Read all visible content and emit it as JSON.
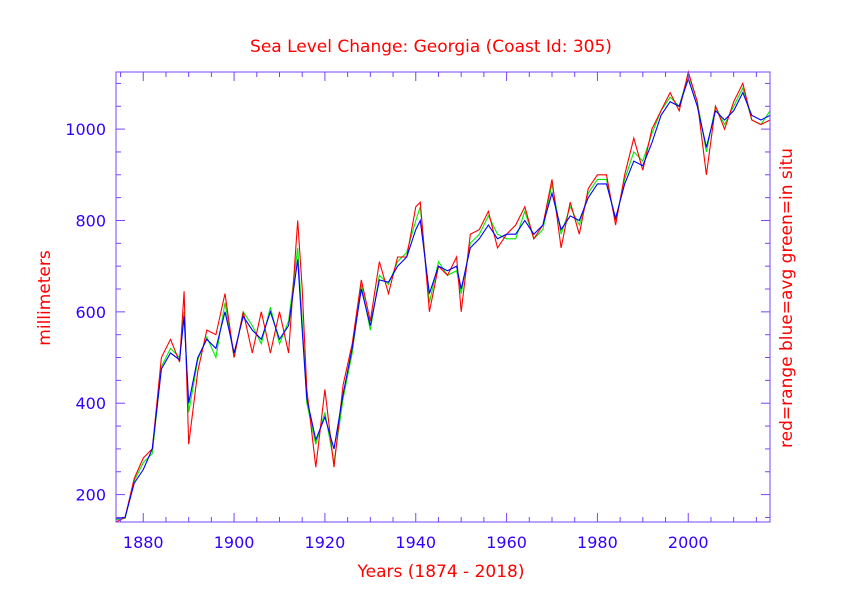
{
  "chart_data": {
    "type": "line",
    "title": "Sea Level Change: Georgia (Coast Id: 305)",
    "xlabel": "Years (1874 - 2018)",
    "ylabel": "millimeters",
    "right_label": "red=range  blue=avg  green=in situ",
    "xlim": [
      1874,
      2018
    ],
    "ylim": [
      140,
      1125
    ],
    "xticks": [
      1880,
      1900,
      1920,
      1940,
      1960,
      1980,
      2000
    ],
    "yticks": [
      200,
      400,
      600,
      800,
      1000
    ],
    "colors": {
      "title": "#ff0000",
      "axis_label": "#ff0000",
      "ticks": "#3300ff",
      "frame": "#7744ff",
      "range": "#ff0000",
      "avg": "#0000ff",
      "in_situ": "#00ee00"
    },
    "x": [
      1874,
      1876,
      1878,
      1880,
      1882,
      1884,
      1886,
      1888,
      1889,
      1890,
      1892,
      1894,
      1896,
      1898,
      1900,
      1902,
      1904,
      1906,
      1908,
      1910,
      1912,
      1914,
      1915,
      1916,
      1918,
      1920,
      1922,
      1924,
      1926,
      1928,
      1930,
      1932,
      1934,
      1936,
      1938,
      1940,
      1941,
      1943,
      1945,
      1947,
      1949,
      1950,
      1952,
      1954,
      1956,
      1958,
      1960,
      1962,
      1964,
      1966,
      1968,
      1970,
      1972,
      1974,
      1976,
      1978,
      1980,
      1982,
      1984,
      1986,
      1988,
      1990,
      1992,
      1994,
      1996,
      1998,
      2000,
      2002,
      2004,
      2006,
      2008,
      2010,
      2012,
      2014,
      2016,
      2018
    ],
    "series": [
      {
        "name": "avg",
        "values": [
          148,
          150,
          225,
          255,
          300,
          475,
          510,
          495,
          590,
          400,
          500,
          540,
          520,
          600,
          510,
          590,
          560,
          540,
          600,
          540,
          570,
          715,
          560,
          410,
          320,
          370,
          300,
          420,
          520,
          650,
          570,
          670,
          665,
          700,
          720,
          780,
          800,
          640,
          700,
          690,
          700,
          650,
          740,
          760,
          790,
          760,
          770,
          770,
          800,
          770,
          790,
          860,
          780,
          810,
          800,
          850,
          880,
          880,
          805,
          880,
          930,
          920,
          970,
          1030,
          1060,
          1050,
          1110,
          1050,
          960,
          1040,
          1020,
          1040,
          1080,
          1030,
          1020,
          1030
        ]
      },
      {
        "name": "in situ",
        "values": [
          145,
          148,
          230,
          270,
          290,
          480,
          520,
          500,
          600,
          380,
          495,
          545,
          500,
          620,
          500,
          600,
          570,
          530,
          610,
          530,
          580,
          740,
          580,
          400,
          310,
          380,
          270,
          410,
          510,
          660,
          560,
          680,
          660,
          710,
          730,
          800,
          830,
          620,
          710,
          680,
          690,
          640,
          750,
          770,
          810,
          770,
          760,
          760,
          820,
          760,
          780,
          880,
          770,
          830,
          790,
          860,
          890,
          890,
          800,
          890,
          950,
          930,
          990,
          1040,
          1070,
          1050,
          1120,
          1060,
          950,
          1050,
          1010,
          1050,
          1090,
          1020,
          1010,
          1040
        ]
      },
      {
        "name": "range",
        "values": [
          140,
          150,
          235,
          280,
          300,
          500,
          540,
          490,
          645,
          310,
          470,
          560,
          550,
          640,
          500,
          600,
          510,
          600,
          510,
          600,
          510,
          800,
          650,
          430,
          260,
          430,
          260,
          440,
          530,
          670,
          580,
          710,
          640,
          720,
          720,
          830,
          840,
          600,
          700,
          680,
          720,
          600,
          770,
          780,
          820,
          740,
          770,
          790,
          830,
          760,
          790,
          890,
          740,
          840,
          770,
          870,
          900,
          900,
          790,
          900,
          980,
          910,
          1000,
          1040,
          1080,
          1040,
          1125,
          1060,
          900,
          1050,
          1000,
          1060,
          1100,
          1020,
          1010,
          1020
        ]
      }
    ]
  }
}
